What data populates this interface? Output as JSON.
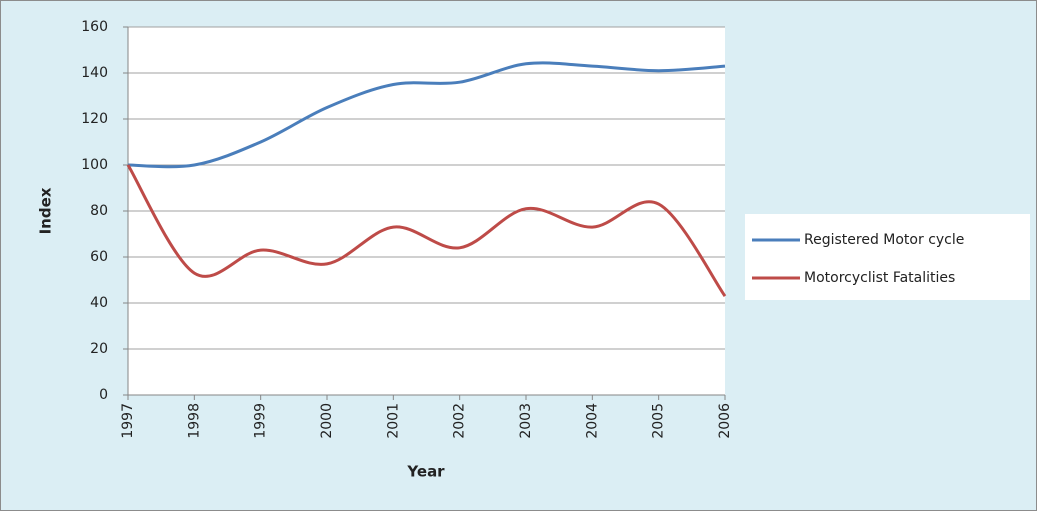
{
  "chart_data": {
    "type": "line",
    "x": [
      1997,
      1998,
      1999,
      2000,
      2001,
      2002,
      2003,
      2004,
      2005,
      2006
    ],
    "xlim": [
      1997,
      2006
    ],
    "xticks": [
      1997,
      1998,
      1999,
      2000,
      2001,
      2002,
      2003,
      2004,
      2005,
      2006
    ],
    "ylim": [
      0,
      160
    ],
    "yticks": [
      0,
      20,
      40,
      60,
      80,
      100,
      120,
      140,
      160
    ],
    "x_label": "Year",
    "y_label": "Index",
    "grid": true,
    "legend": "right",
    "series": [
      {
        "name": "Registered Motor cycle",
        "color": "#4a7ebb",
        "values": [
          100,
          100,
          110,
          125,
          135,
          136,
          144,
          143,
          141,
          143
        ]
      },
      {
        "name": "Motorcyclist Fatalities",
        "color": "#be4b48",
        "values": [
          100,
          53,
          63,
          57,
          73,
          64,
          81,
          73,
          83,
          43
        ]
      }
    ]
  }
}
